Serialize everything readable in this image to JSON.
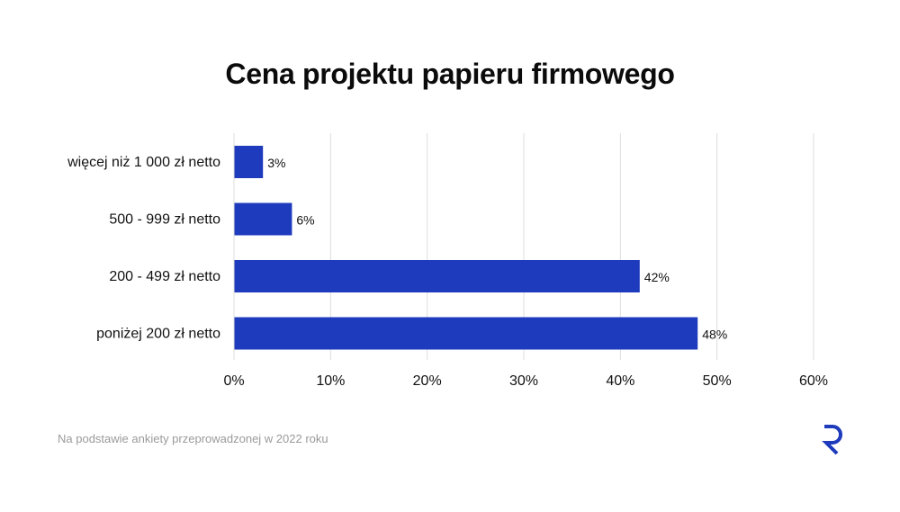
{
  "title": "Cena projektu papieru firmowego",
  "footnote": "Na podstawie ankiety przeprowadzonej w 2022 roku",
  "colors": {
    "bar": "#1e3bbd",
    "grid": "#dcdcdc",
    "text": "#111111",
    "logo": "#1e3bbd"
  },
  "logo_icon": "r-letter-logo-icon",
  "chart_data": {
    "type": "bar",
    "orientation": "horizontal",
    "categories": [
      "więcej niż 1 000 zł netto",
      "500 - 999 zł netto",
      "200 - 499 zł netto",
      "poniżej 200 zł netto"
    ],
    "values": [
      3,
      6,
      42,
      48
    ],
    "value_labels": [
      "3%",
      "6%",
      "42%",
      "48%"
    ],
    "xlim": [
      0,
      60
    ],
    "xticks": [
      0,
      10,
      20,
      30,
      40,
      50,
      60
    ],
    "xtick_labels": [
      "0%",
      "10%",
      "20%",
      "30%",
      "40%",
      "50%",
      "60%"
    ],
    "grid": true,
    "legend": "none"
  }
}
